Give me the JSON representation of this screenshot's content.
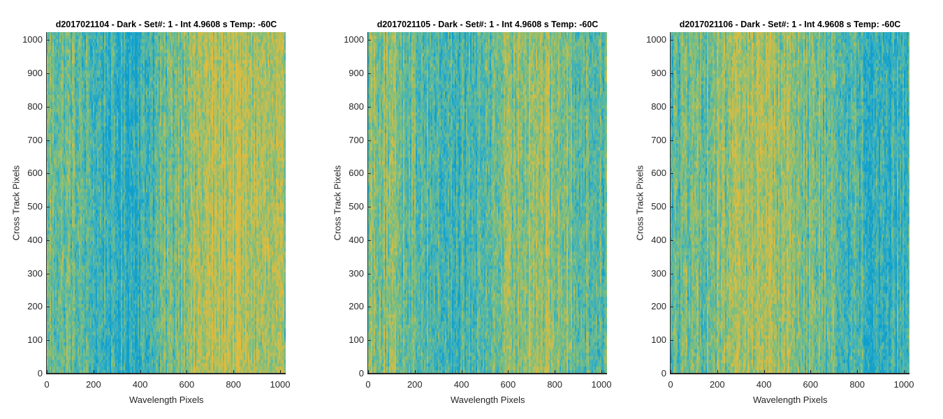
{
  "chart_data": [
    {
      "type": "heatmap",
      "title": "d2017021104 - Dark - Set#: 1 - Int 4.9608 s Temp: -60C",
      "xlabel": "Wavelength Pixels",
      "ylabel": "Cross Track Pixels",
      "xlim": [
        0,
        1024
      ],
      "ylim": [
        0,
        1024
      ],
      "xticks": [
        "0",
        "200",
        "400",
        "600",
        "800",
        "1000"
      ],
      "yticks": [
        "0",
        "100",
        "200",
        "300",
        "400",
        "500",
        "600",
        "700",
        "800",
        "900",
        "1000"
      ],
      "colormap": [
        "#0f9fcc",
        "#35aec4",
        "#5fb99a",
        "#8cbf73",
        "#c2bd52",
        "#e3bb3a"
      ],
      "column_profile": [
        {
          "x": 0,
          "level": 0.5
        },
        {
          "x": 100,
          "level": 0.45
        },
        {
          "x": 200,
          "level": 0.3
        },
        {
          "x": 300,
          "level": 0.18
        },
        {
          "x": 400,
          "level": 0.22
        },
        {
          "x": 500,
          "level": 0.4
        },
        {
          "x": 600,
          "level": 0.65
        },
        {
          "x": 700,
          "level": 0.72
        },
        {
          "x": 800,
          "level": 0.8
        },
        {
          "x": 900,
          "level": 0.7
        },
        {
          "x": 1024,
          "level": 0.58
        }
      ]
    },
    {
      "type": "heatmap",
      "title": "d2017021105 - Dark - Set#: 1 - Int 4.9608 s Temp: -60C",
      "xlabel": "Wavelength Pixels",
      "ylabel": "Cross Track Pixels",
      "xlim": [
        0,
        1024
      ],
      "ylim": [
        0,
        1024
      ],
      "xticks": [
        "0",
        "200",
        "400",
        "600",
        "800",
        "1000"
      ],
      "yticks": [
        "0",
        "100",
        "200",
        "300",
        "400",
        "500",
        "600",
        "700",
        "800",
        "900",
        "1000"
      ],
      "colormap": [
        "#0f9fcc",
        "#35aec4",
        "#5fb99a",
        "#8cbf73",
        "#c2bd52",
        "#e3bb3a"
      ],
      "column_profile": [
        {
          "x": 0,
          "level": 0.62
        },
        {
          "x": 100,
          "level": 0.55
        },
        {
          "x": 200,
          "level": 0.45
        },
        {
          "x": 300,
          "level": 0.32
        },
        {
          "x": 400,
          "level": 0.25
        },
        {
          "x": 500,
          "level": 0.38
        },
        {
          "x": 600,
          "level": 0.55
        },
        {
          "x": 700,
          "level": 0.68
        },
        {
          "x": 800,
          "level": 0.6
        },
        {
          "x": 900,
          "level": 0.45
        },
        {
          "x": 1024,
          "level": 0.38
        }
      ]
    },
    {
      "type": "heatmap",
      "title": "d2017021106 - Dark - Set#: 1 - Int 4.9608 s Temp: -60C",
      "xlabel": "Wavelength Pixels",
      "ylabel": "Cross Track Pixels",
      "xlim": [
        0,
        1024
      ],
      "ylim": [
        0,
        1024
      ],
      "xticks": [
        "0",
        "200",
        "400",
        "600",
        "800",
        "1000"
      ],
      "yticks": [
        "0",
        "100",
        "200",
        "300",
        "400",
        "500",
        "600",
        "700",
        "800",
        "900",
        "1000"
      ],
      "colormap": [
        "#0f9fcc",
        "#35aec4",
        "#5fb99a",
        "#8cbf73",
        "#c2bd52",
        "#e3bb3a"
      ],
      "column_profile": [
        {
          "x": 0,
          "level": 0.4
        },
        {
          "x": 100,
          "level": 0.45
        },
        {
          "x": 200,
          "level": 0.55
        },
        {
          "x": 300,
          "level": 0.65
        },
        {
          "x": 400,
          "level": 0.75
        },
        {
          "x": 500,
          "level": 0.62
        },
        {
          "x": 600,
          "level": 0.52
        },
        {
          "x": 700,
          "level": 0.4
        },
        {
          "x": 800,
          "level": 0.3
        },
        {
          "x": 900,
          "level": 0.22
        },
        {
          "x": 1024,
          "level": 0.28
        }
      ]
    }
  ]
}
